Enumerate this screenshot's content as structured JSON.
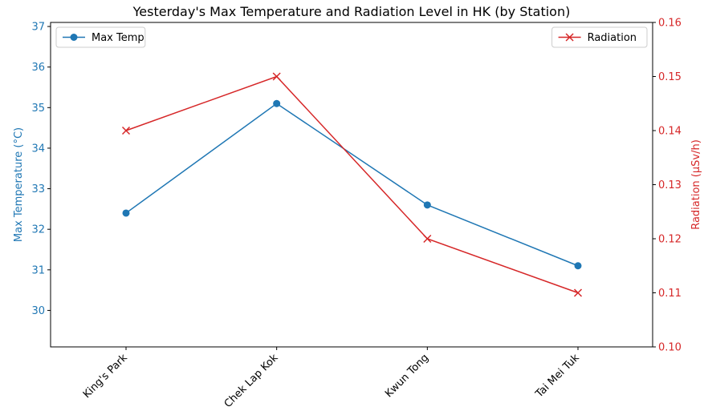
{
  "chart_data": {
    "type": "line",
    "title": "Yesterday's Max Temperature and Radiation Level in HK (by Station)",
    "categories": [
      "King's Park",
      "Chek Lap Kok",
      "Kwun Tong",
      "Tai Mei Tuk"
    ],
    "xlabel": "",
    "grid": false,
    "left_axis": {
      "label": "Max Temperature (°C)",
      "ylim": [
        29.1,
        37.1
      ],
      "ticks": [
        "30",
        "31",
        "32",
        "33",
        "34",
        "35",
        "36",
        "37"
      ],
      "color": "#1f77b4"
    },
    "right_axis": {
      "label": "Radiation (μSv/h)",
      "ylim": [
        0.1,
        0.16
      ],
      "ticks": [
        "0.10",
        "0.11",
        "0.12",
        "0.13",
        "0.14",
        "0.15",
        "0.16"
      ],
      "color": "#d62728"
    },
    "series": [
      {
        "name": "Max Temp",
        "axis": "left",
        "marker": "circle",
        "color": "#1f77b4",
        "values": [
          32.4,
          35.1,
          32.6,
          31.1
        ]
      },
      {
        "name": "Radiation",
        "axis": "right",
        "marker": "x",
        "color": "#d62728",
        "values": [
          0.14,
          0.15,
          0.12,
          0.11
        ]
      }
    ],
    "legends": [
      {
        "series": "Max Temp",
        "placement": "top-left"
      },
      {
        "series": "Radiation",
        "placement": "top-right"
      }
    ]
  }
}
